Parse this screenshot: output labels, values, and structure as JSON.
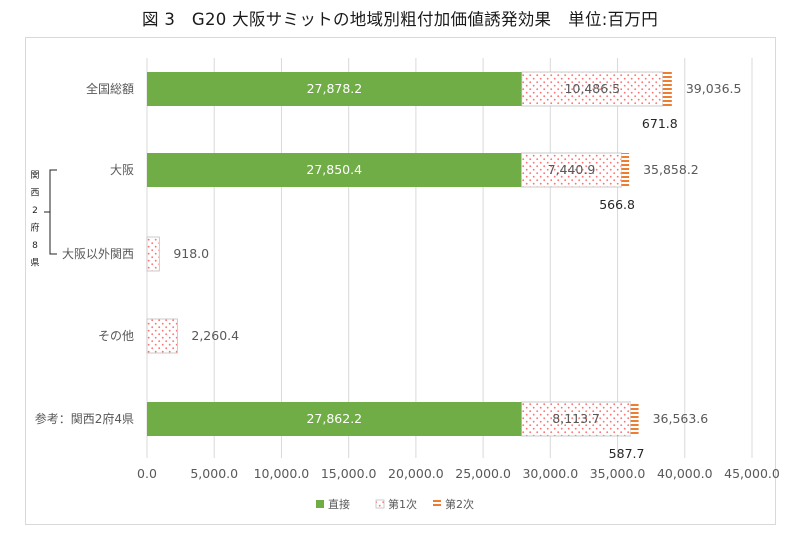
{
  "title": "図 3　G20 大阪サミットの地域別粗付加価値誘発効果　単位:百万円",
  "bracket_label": [
    "関",
    "西",
    "2",
    "府",
    "8",
    "県"
  ],
  "colors": {
    "direct": "#70ad47",
    "first": "#ff8080",
    "second": "#ed7d31",
    "grid": "#d9d9d9",
    "text": "#595959"
  },
  "chart_data": {
    "type": "bar",
    "orientation": "horizontal",
    "stacked": true,
    "categories": [
      "全国総額",
      "大阪",
      "大阪以外関西",
      "その他",
      "参考：関西2府4県"
    ],
    "series": [
      {
        "name": "直接",
        "values": [
          27878.2,
          27850.4,
          0,
          0,
          27862.2
        ],
        "labels": [
          "27,878.2",
          "27,850.4",
          "",
          "",
          "27,862.2"
        ]
      },
      {
        "name": "第1次",
        "values": [
          10486.5,
          7440.9,
          918.0,
          2260.4,
          8113.7
        ],
        "labels": [
          "10,486.5",
          "7,440.9",
          "",
          "",
          "8,113.7"
        ]
      },
      {
        "name": "第2次",
        "values": [
          671.8,
          566.8,
          0,
          0,
          587.7
        ],
        "labels": [
          "671.8",
          "566.8",
          "",
          "",
          "587.7"
        ]
      }
    ],
    "totals": [
      "39,036.5",
      "35,858.2",
      "918.0",
      "2,260.4",
      "36,563.6"
    ],
    "xlim": [
      0,
      45000
    ],
    "xticks": [
      "0.0",
      "5,000.0",
      "10,000.0",
      "15,000.0",
      "20,000.0",
      "25,000.0",
      "30,000.0",
      "35,000.0",
      "40,000.0",
      "45,000.0"
    ],
    "grid": true,
    "legend_position": "bottom"
  }
}
